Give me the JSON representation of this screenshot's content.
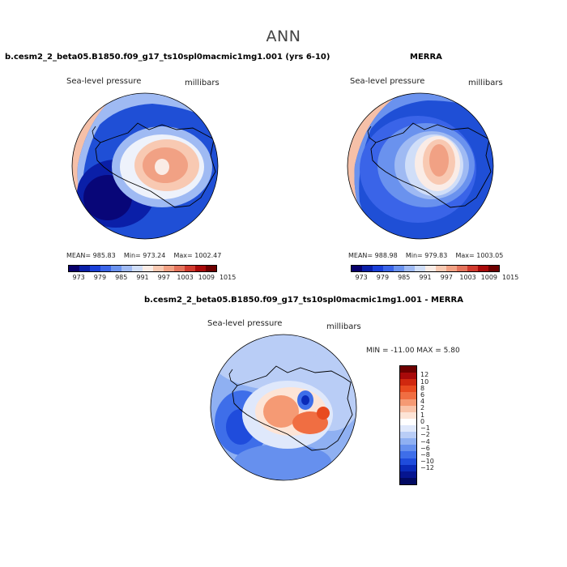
{
  "title": "ANN",
  "panels": [
    {
      "name": "model",
      "title": "b.cesm2_2_beta05.B1850.f09_g17_ts10spl0macmic1mg1.001 (yrs 6-10)",
      "variable": "Sea-level pressure",
      "units": "millibars",
      "stats": {
        "mean_label": "MEAN=",
        "mean": "985.83",
        "min_label": "Min=",
        "min": "973.24",
        "max_label": "Max=",
        "max": "1002.47"
      }
    },
    {
      "name": "obs",
      "title": "MERRA",
      "variable": "Sea-level pressure",
      "units": "millibars",
      "stats": {
        "mean_label": "MEAN=",
        "mean": "988.98",
        "min_label": "Min=",
        "min": "979.83",
        "max_label": "Max=",
        "max": "1003.05"
      }
    },
    {
      "name": "diff",
      "title": "b.cesm2_2_beta05.B1850.f09_g17_ts10spl0macmic1mg1.001 - MERRA",
      "variable": "Sea-level pressure",
      "units": "millibars",
      "stats_text": "MIN = -11.00  MAX =   5.80"
    }
  ],
  "colorbar_abs": {
    "colors": [
      "#08006b",
      "#0a1fa8",
      "#1a3fd8",
      "#3a64e8",
      "#6a92ee",
      "#9fbaf3",
      "#d0def8",
      "#faece6",
      "#f8c9b2",
      "#f1a184",
      "#e4735c",
      "#d03a2e",
      "#a80a0a",
      "#6e0000"
    ],
    "labels": [
      "973",
      "979",
      "985",
      "991",
      "997",
      "1003",
      "1009",
      "1015"
    ]
  },
  "colorbar_diff": {
    "colors": [
      "#6e0000",
      "#a80a0a",
      "#d0280f",
      "#e84a1f",
      "#f06e42",
      "#f59a74",
      "#f9c3a8",
      "#fde4d6",
      "#ffffff",
      "#dfe8fb",
      "#b9cdf6",
      "#8fb0f2",
      "#6690ee",
      "#3e6ee9",
      "#1f4cdc",
      "#0a2ab8",
      "#061590",
      "#020a62"
    ],
    "labels": [
      "12",
      "10",
      "8",
      "6",
      "4",
      "2",
      "1",
      "0",
      "−1",
      "−2",
      "−4",
      "−6",
      "−8",
      "−10",
      "−12"
    ]
  },
  "map_colors": {
    "ocean_dark": "#0b2fa5",
    "ocean_mid": "#1f4fd6",
    "ocean_light": "#5f8ee6",
    "ocean_pale": "#a9c3f2",
    "neutral": "#eef2fb",
    "high_light": "#f6c3ab",
    "high_mid": "#ee9a7c",
    "high_strong": "#e0704f",
    "outer_pink": "#f5c0a8"
  }
}
